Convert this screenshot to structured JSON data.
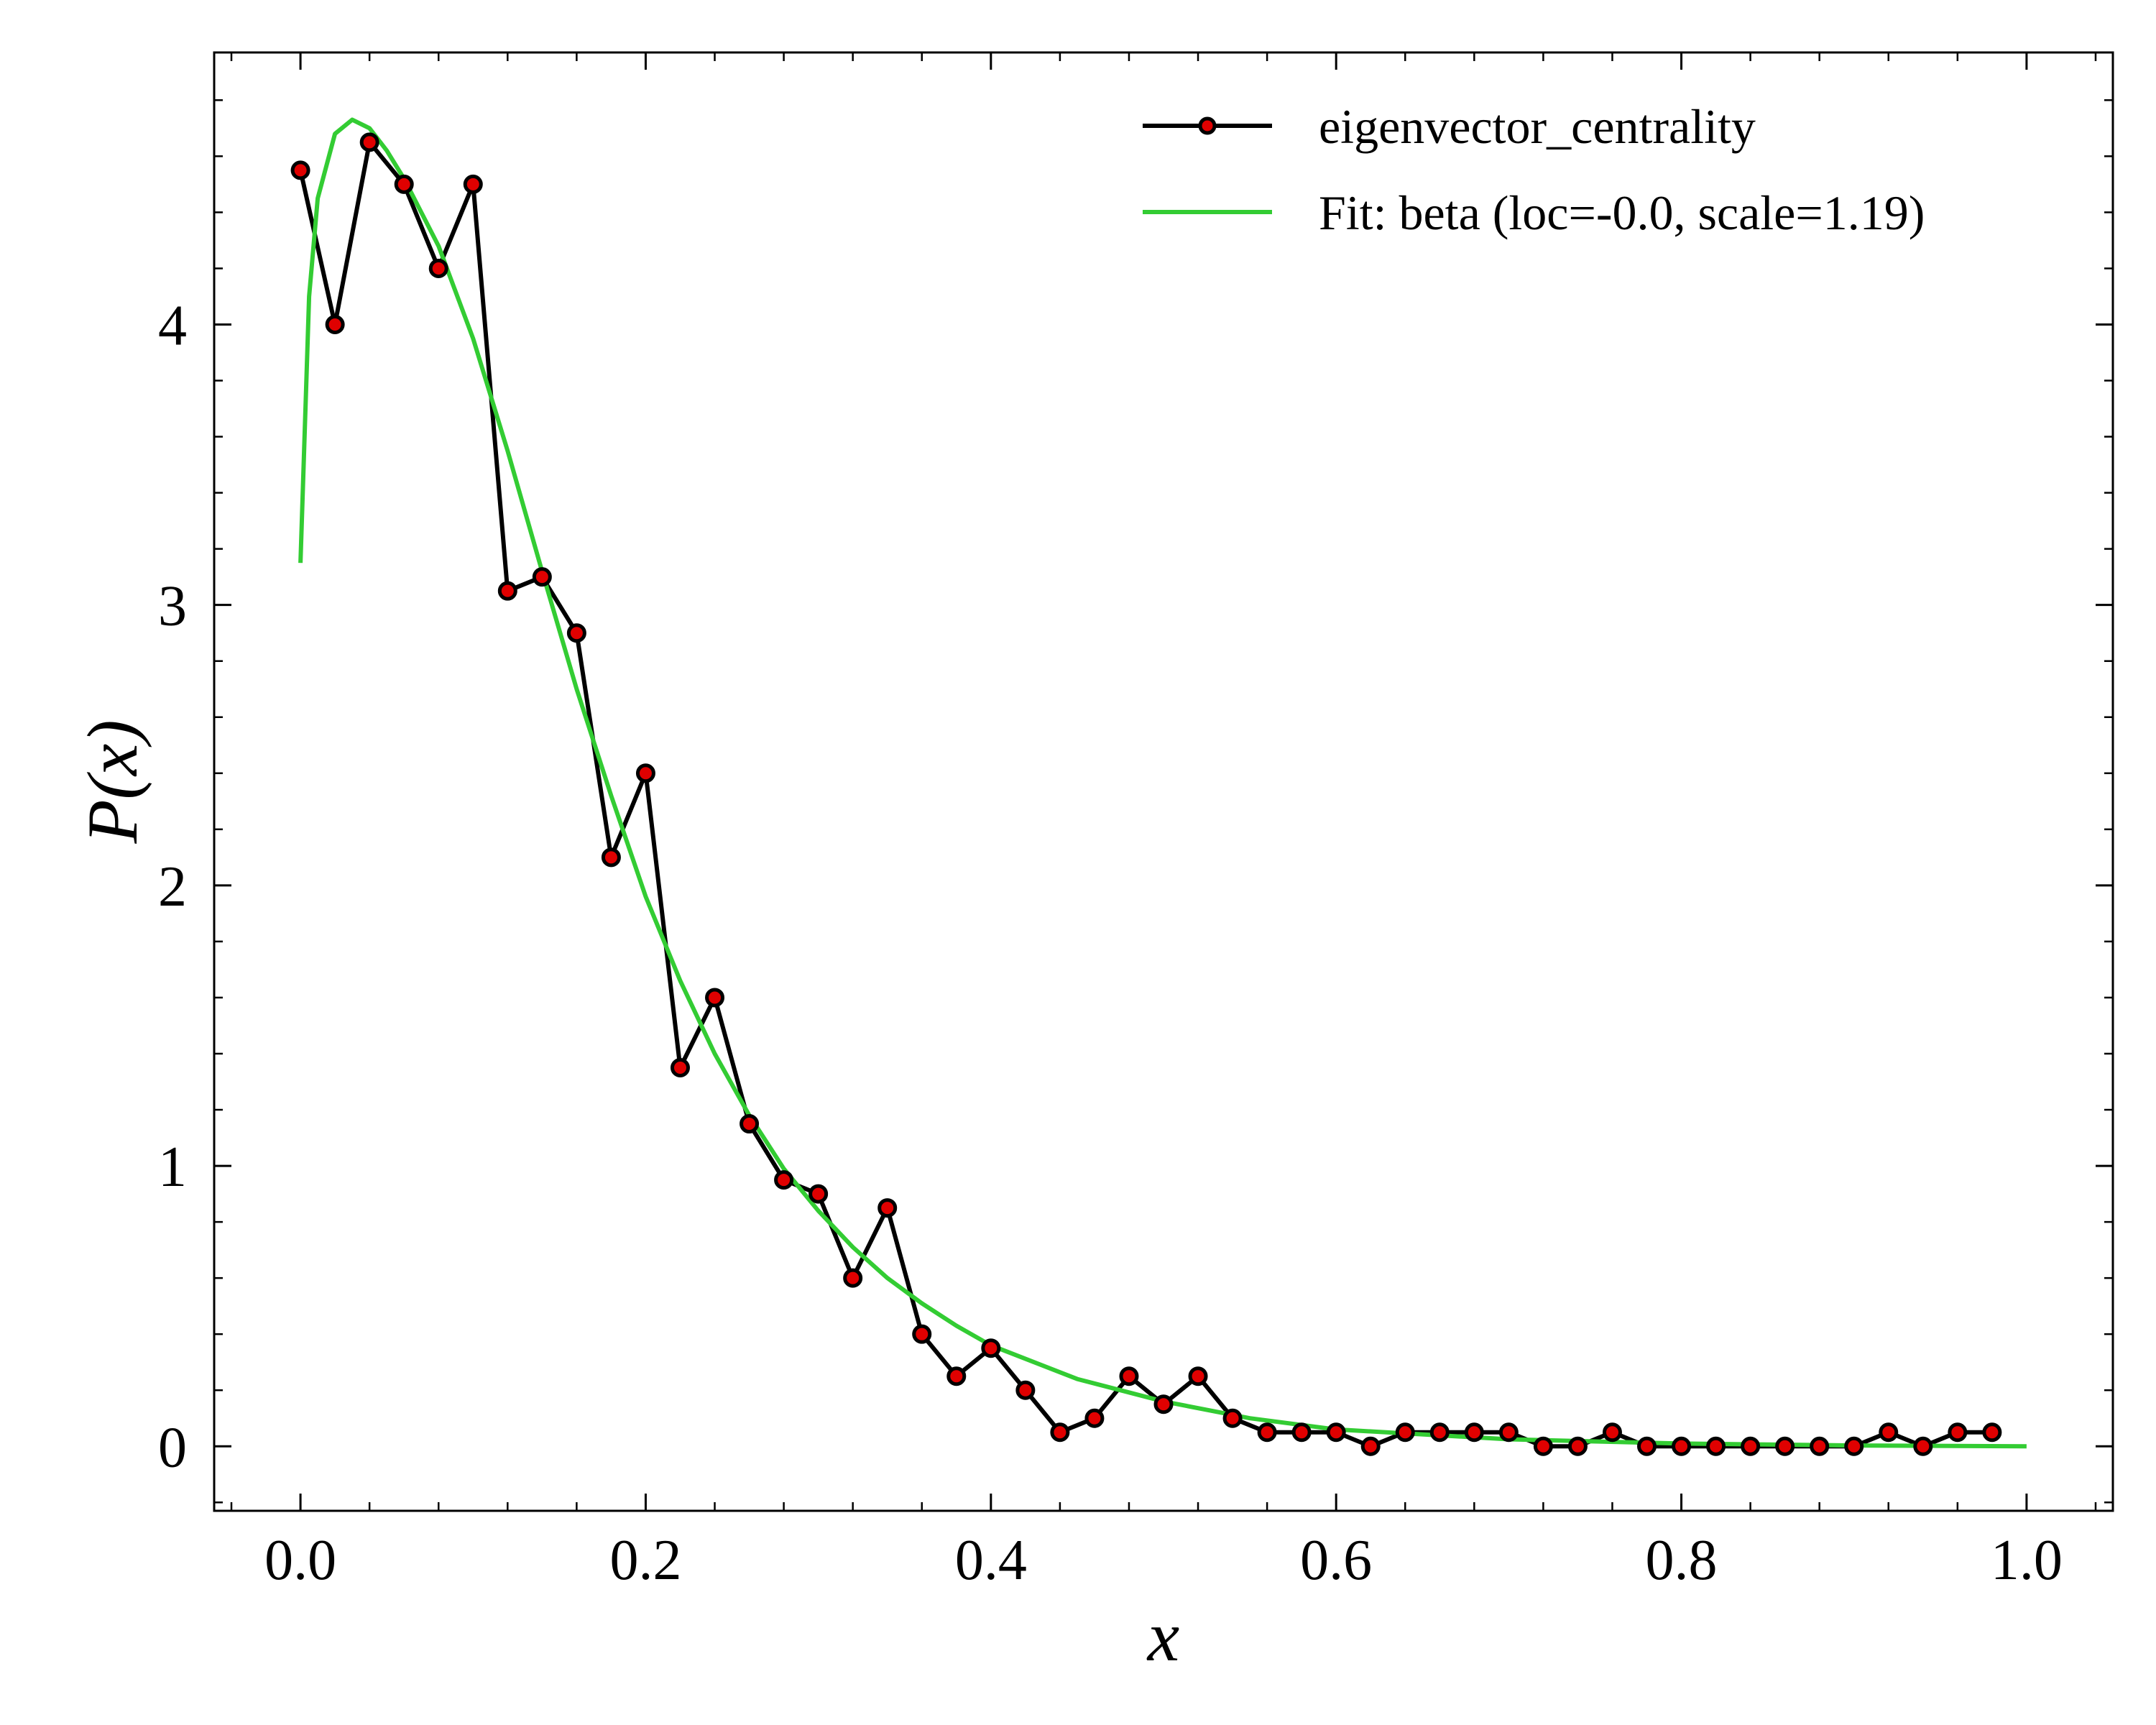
{
  "chart_data": {
    "type": "line",
    "xlabel": "x",
    "ylabel": "P(x)",
    "xlim": [
      -0.05,
      1.05
    ],
    "ylim": [
      -0.23,
      4.97
    ],
    "xticks": [
      0.0,
      0.2,
      0.4,
      0.6,
      0.8,
      1.0
    ],
    "xtick_labels": [
      "0.0",
      "0.2",
      "0.4",
      "0.6",
      "0.8",
      "1.0"
    ],
    "yticks": [
      0,
      1,
      2,
      3,
      4
    ],
    "ytick_labels": [
      "0",
      "1",
      "2",
      "3",
      "4"
    ],
    "grid": false,
    "legend_position": "top-right",
    "colors": {
      "data_line": "#000000",
      "marker_fill": "#e00000",
      "fit_line": "#33cc33"
    },
    "series": [
      {
        "name": "eigenvector_centrality",
        "kind": "line-markers",
        "x": [
          0.0,
          0.02,
          0.04,
          0.06,
          0.08,
          0.1,
          0.12,
          0.14,
          0.16,
          0.18,
          0.2,
          0.22,
          0.24,
          0.26,
          0.28,
          0.3,
          0.32,
          0.34,
          0.36,
          0.38,
          0.4,
          0.42,
          0.44,
          0.46,
          0.48,
          0.5,
          0.52,
          0.54,
          0.56,
          0.58,
          0.6,
          0.62,
          0.64,
          0.66,
          0.68,
          0.7,
          0.72,
          0.74,
          0.76,
          0.78,
          0.8,
          0.82,
          0.84,
          0.86,
          0.88,
          0.9,
          0.92,
          0.94,
          0.96,
          0.98
        ],
        "y": [
          4.55,
          4.0,
          4.65,
          4.5,
          4.2,
          4.5,
          3.05,
          3.1,
          2.9,
          2.1,
          2.4,
          1.35,
          1.6,
          1.15,
          0.95,
          0.9,
          0.6,
          0.85,
          0.4,
          0.25,
          0.35,
          0.2,
          0.05,
          0.1,
          0.25,
          0.15,
          0.25,
          0.1,
          0.05,
          0.05,
          0.05,
          0.0,
          0.05,
          0.05,
          0.05,
          0.05,
          0.0,
          0.0,
          0.05,
          0.0,
          0.0,
          0.0,
          0.0,
          0.0,
          0.0,
          0.0,
          0.05,
          0.0,
          0.05,
          0.05
        ]
      },
      {
        "name": "Fit: beta (loc=-0.0, scale=1.19)",
        "kind": "line",
        "x": [
          0.0,
          0.005,
          0.01,
          0.02,
          0.03,
          0.04,
          0.05,
          0.06,
          0.08,
          0.1,
          0.12,
          0.14,
          0.16,
          0.18,
          0.2,
          0.22,
          0.24,
          0.26,
          0.28,
          0.3,
          0.32,
          0.34,
          0.36,
          0.38,
          0.4,
          0.45,
          0.5,
          0.55,
          0.6,
          0.7,
          0.8,
          0.9,
          1.0
        ],
        "y": [
          3.15,
          4.1,
          4.45,
          4.68,
          4.73,
          4.7,
          4.62,
          4.52,
          4.28,
          3.95,
          3.55,
          3.12,
          2.7,
          2.32,
          1.96,
          1.66,
          1.4,
          1.18,
          0.99,
          0.84,
          0.71,
          0.6,
          0.51,
          0.43,
          0.36,
          0.24,
          0.16,
          0.1,
          0.06,
          0.025,
          0.01,
          0.003,
          0.0
        ]
      }
    ]
  }
}
